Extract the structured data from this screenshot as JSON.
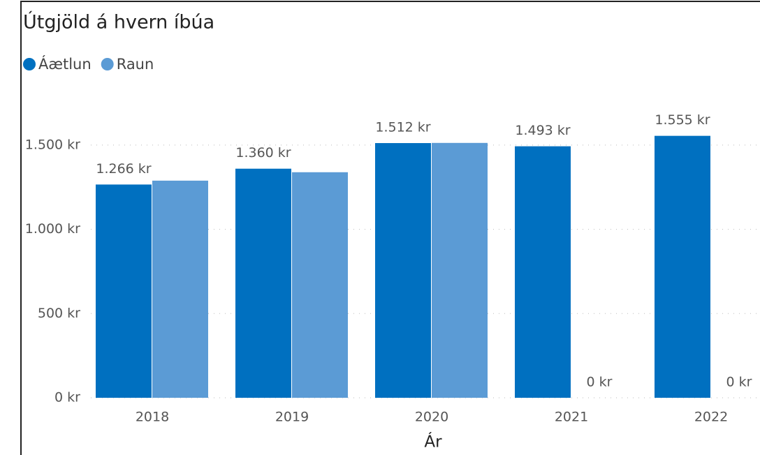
{
  "chart_data": {
    "type": "bar",
    "title": "Útgjöld á hvern íbúa",
    "x_label": "Ár",
    "categories": [
      "2018",
      "2019",
      "2020",
      "2021",
      "2022"
    ],
    "series": [
      {
        "name": "Áætlun",
        "color": "#0070c0",
        "values": [
          1266,
          1360,
          1512,
          1493,
          1555
        ],
        "value_labels": [
          "1.266 kr",
          "1.360 kr",
          "1.512 kr",
          "1.493 kr",
          "1.555 kr"
        ]
      },
      {
        "name": "Raun",
        "color": "#5b9bd5",
        "values": [
          1289,
          1339,
          1513,
          0,
          0
        ],
        "value_labels": [
          null,
          null,
          null,
          "0 kr",
          "0 kr"
        ]
      }
    ],
    "ylim": [
      0,
      1740
    ],
    "yticks": [
      {
        "value": 0,
        "label": "0 kr"
      },
      {
        "value": 500,
        "label": "500 kr"
      },
      {
        "value": 1000,
        "label": "1.000 kr"
      },
      {
        "value": 1500,
        "label": "1.500 kr"
      }
    ],
    "grid": true,
    "legend": "top-left"
  }
}
